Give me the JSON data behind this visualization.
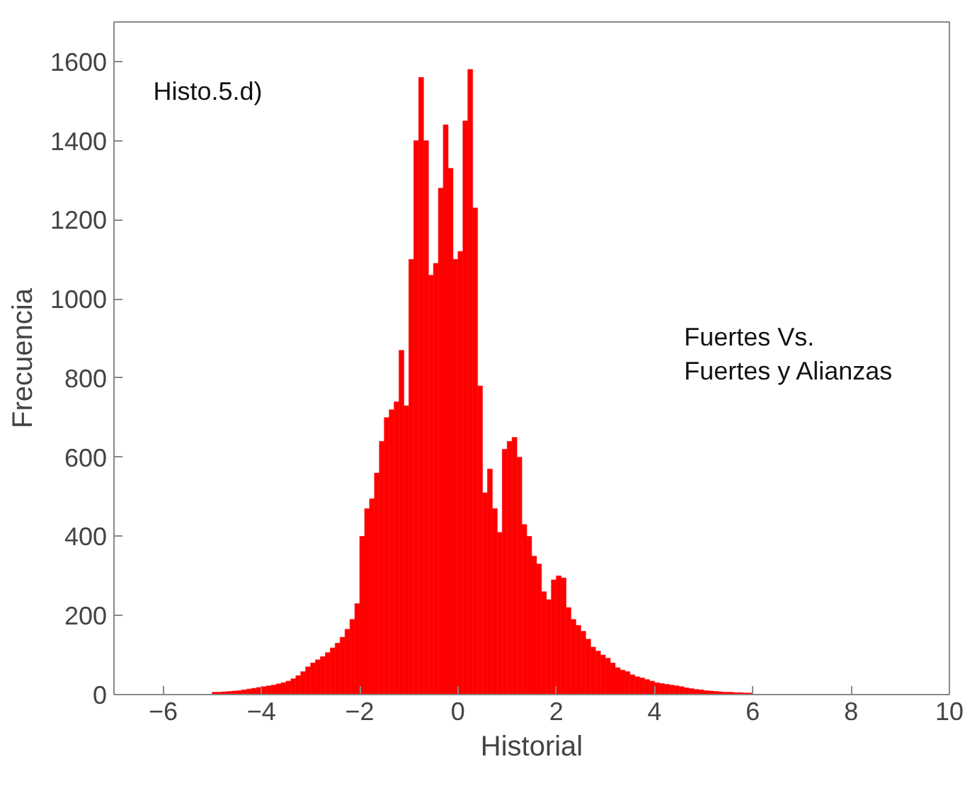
{
  "chart_data": {
    "type": "histogram",
    "xlabel": "Historial",
    "ylabel": "Frecuencia",
    "annotations": [
      "Histo.5.d)",
      "Fuertes Vs.\nFuertes y Alianzas"
    ],
    "color": "#ff0000",
    "bins": [
      -5.0,
      -4.9,
      -4.8,
      -4.7,
      -4.6,
      -4.5,
      -4.4,
      -4.3,
      -4.2,
      -4.1,
      -4.0,
      -3.9,
      -3.8,
      -3.7,
      -3.6,
      -3.5,
      -3.4,
      -3.3,
      -3.2,
      -3.1,
      -3.0,
      -2.9,
      -2.8,
      -2.7,
      -2.6,
      -2.5,
      -2.4,
      -2.3,
      -2.2,
      -2.1,
      -2.0,
      -1.9,
      -1.8,
      -1.7,
      -1.6,
      -1.5,
      -1.4,
      -1.3,
      -1.2,
      -1.1,
      -1.0,
      -0.9,
      -0.8,
      -0.7,
      -0.6,
      -0.5,
      -0.4,
      -0.3,
      -0.2,
      -0.1,
      0.0,
      0.1,
      0.2,
      0.3,
      0.4,
      0.5,
      0.6,
      0.7,
      0.8,
      0.9,
      1.0,
      1.1,
      1.2,
      1.3,
      1.4,
      1.5,
      1.6,
      1.7,
      1.8,
      1.9,
      2.0,
      2.1,
      2.2,
      2.3,
      2.4,
      2.5,
      2.6,
      2.7,
      2.8,
      2.9,
      3.0,
      3.1,
      3.2,
      3.3,
      3.4,
      3.5,
      3.6,
      3.7,
      3.8,
      3.9,
      4.0,
      4.1,
      4.2,
      4.3,
      4.4,
      4.5,
      4.6,
      4.7,
      4.8,
      4.9,
      5.0,
      5.1,
      5.2,
      5.3,
      5.4,
      5.5,
      5.6,
      5.7,
      5.8,
      5.9,
      6.0
    ],
    "values": [
      6,
      6,
      7,
      8,
      9,
      10,
      12,
      14,
      16,
      18,
      20,
      22,
      24,
      27,
      30,
      34,
      40,
      48,
      58,
      70,
      80,
      88,
      96,
      106,
      118,
      130,
      145,
      165,
      190,
      230,
      400,
      470,
      495,
      560,
      640,
      700,
      720,
      740,
      870,
      730,
      1100,
      1400,
      1560,
      1400,
      1060,
      1090,
      1280,
      1440,
      1330,
      1100,
      1120,
      1450,
      1580,
      1230,
      780,
      510,
      570,
      470,
      410,
      620,
      640,
      650,
      600,
      430,
      400,
      350,
      330,
      260,
      240,
      290,
      300,
      295,
      220,
      190,
      175,
      160,
      140,
      120,
      110,
      100,
      92,
      80,
      68,
      62,
      58,
      50,
      45,
      42,
      38,
      34,
      30,
      28,
      26,
      24,
      22,
      20,
      17,
      15,
      13,
      12,
      10,
      9,
      8,
      7,
      6,
      6,
      5,
      5,
      4,
      4
    ],
    "xlim": [
      -7,
      10
    ],
    "xticks": [
      -6,
      -4,
      -2,
      0,
      2,
      4,
      6,
      8,
      10
    ],
    "ylim": [
      0,
      1700
    ],
    "yticks": [
      0,
      200,
      400,
      600,
      800,
      1000,
      1200,
      1400,
      1600
    ],
    "grid": false
  }
}
